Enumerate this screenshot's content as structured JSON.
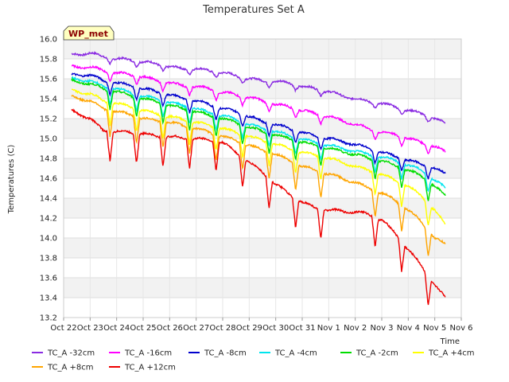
{
  "chart_data": {
    "type": "line",
    "title": "Temperatures Set A",
    "xlabel": "Time",
    "ylabel": "Temperatures (C)",
    "badge": "WP_met",
    "x_ticks": [
      "Oct 22",
      "Oct 23",
      "Oct 24",
      "Oct 25",
      "Oct 26",
      "Oct 27",
      "Oct 28",
      "Oct 29",
      "Oct 30",
      "Oct 31",
      "Nov 1",
      "Nov 2",
      "Nov 3",
      "Nov 4",
      "Nov 5",
      "Nov 6"
    ],
    "xlim": [
      0,
      15
    ],
    "ylim": [
      13.2,
      16.0
    ],
    "y_ticks": [
      13.2,
      13.4,
      13.6,
      13.8,
      14.0,
      14.2,
      14.4,
      14.6,
      14.8,
      15.0,
      15.2,
      15.4,
      15.6,
      15.8,
      16.0
    ],
    "grid": true,
    "legend_position": "bottom",
    "series": [
      {
        "name": "TC_A -32cm",
        "color": "#8a2be2",
        "x": [
          0.3,
          1.0,
          1.5,
          2.0,
          2.5,
          3.0,
          3.5,
          4.0,
          4.5,
          5.0,
          5.5,
          6.0,
          6.5,
          7.0,
          7.5,
          8.0,
          8.5,
          9.0,
          9.5,
          10.0,
          10.5,
          11.0,
          11.5,
          12.0,
          12.5,
          13.0,
          13.5,
          14.0,
          14.4
        ],
        "y": [
          15.84,
          15.86,
          15.82,
          15.8,
          15.79,
          15.77,
          15.75,
          15.72,
          15.7,
          15.7,
          15.68,
          15.66,
          15.63,
          15.6,
          15.58,
          15.57,
          15.56,
          15.52,
          15.5,
          15.47,
          15.43,
          15.4,
          15.37,
          15.35,
          15.32,
          15.28,
          15.25,
          15.2,
          15.15
        ]
      },
      {
        "name": "TC_A -16cm",
        "color": "#ff00ff",
        "x": [
          0.3,
          1.0,
          1.5,
          2.0,
          2.5,
          3.0,
          3.5,
          4.0,
          4.5,
          5.0,
          5.5,
          6.0,
          6.5,
          7.0,
          7.5,
          8.0,
          8.5,
          9.0,
          9.5,
          10.0,
          10.5,
          11.0,
          11.5,
          12.0,
          12.5,
          13.0,
          13.5,
          14.0,
          14.4
        ],
        "y": [
          15.72,
          15.72,
          15.68,
          15.66,
          15.64,
          15.62,
          15.58,
          15.56,
          15.53,
          15.52,
          15.5,
          15.46,
          15.44,
          15.41,
          15.38,
          15.34,
          15.32,
          15.28,
          15.25,
          15.22,
          15.18,
          15.14,
          15.1,
          15.06,
          15.04,
          15.0,
          14.96,
          14.92,
          14.86
        ]
      },
      {
        "name": "TC_A -8cm",
        "color": "#0000cd",
        "x": [
          0.3,
          1.0,
          1.5,
          2.0,
          2.5,
          3.0,
          3.5,
          4.0,
          4.5,
          5.0,
          5.5,
          6.0,
          6.5,
          7.0,
          7.5,
          8.0,
          8.5,
          9.0,
          9.5,
          10.0,
          10.5,
          11.0,
          11.5,
          12.0,
          12.5,
          13.0,
          13.5,
          14.0,
          14.4
        ],
        "y": [
          15.64,
          15.64,
          15.58,
          15.56,
          15.53,
          15.5,
          15.47,
          15.44,
          15.4,
          15.38,
          15.34,
          15.3,
          15.27,
          15.22,
          15.17,
          15.14,
          15.1,
          15.06,
          15.02,
          15.0,
          14.97,
          14.94,
          14.9,
          14.86,
          14.82,
          14.78,
          14.74,
          14.7,
          14.64
        ]
      },
      {
        "name": "TC_A -4cm",
        "color": "#00e5ee",
        "x": [
          0.3,
          1.0,
          1.5,
          2.0,
          2.5,
          3.0,
          3.5,
          4.0,
          4.5,
          5.0,
          5.5,
          6.0,
          6.5,
          7.0,
          7.5,
          8.0,
          8.5,
          9.0,
          9.5,
          10.0,
          10.5,
          11.0,
          11.5,
          12.0,
          12.5,
          13.0,
          13.5,
          14.0,
          14.4
        ],
        "y": [
          15.6,
          15.58,
          15.52,
          15.5,
          15.46,
          15.42,
          15.4,
          15.36,
          15.33,
          15.3,
          15.26,
          15.23,
          15.19,
          15.14,
          15.1,
          15.07,
          15.03,
          14.99,
          14.96,
          14.93,
          14.9,
          14.87,
          14.84,
          14.81,
          14.78,
          14.73,
          14.68,
          14.58,
          14.5
        ]
      },
      {
        "name": "TC_A -2cm",
        "color": "#00dd00",
        "x": [
          0.3,
          1.0,
          1.5,
          2.0,
          2.5,
          3.0,
          3.5,
          4.0,
          4.5,
          5.0,
          5.5,
          6.0,
          6.5,
          7.0,
          7.5,
          8.0,
          8.5,
          9.0,
          9.5,
          10.0,
          10.5,
          11.0,
          11.5,
          12.0,
          12.5,
          13.0,
          13.5,
          14.0,
          14.4
        ],
        "y": [
          15.58,
          15.55,
          15.5,
          15.47,
          15.43,
          15.4,
          15.37,
          15.33,
          15.3,
          15.27,
          15.23,
          15.2,
          15.16,
          15.11,
          15.07,
          15.03,
          15.0,
          14.96,
          14.93,
          14.9,
          14.87,
          14.84,
          14.8,
          14.77,
          14.73,
          14.68,
          14.62,
          14.52,
          14.42
        ]
      },
      {
        "name": "TC_A +4cm",
        "color": "#ffff00",
        "x": [
          0.3,
          1.0,
          1.5,
          2.0,
          2.5,
          3.0,
          3.5,
          4.0,
          4.5,
          5.0,
          5.5,
          6.0,
          6.5,
          7.0,
          7.5,
          8.0,
          8.5,
          9.0,
          9.5,
          10.0,
          10.5,
          11.0,
          11.5,
          12.0,
          12.5,
          13.0,
          13.5,
          14.0,
          14.4
        ],
        "y": [
          15.48,
          15.45,
          15.38,
          15.35,
          15.32,
          15.28,
          15.25,
          15.22,
          15.19,
          15.16,
          15.13,
          15.1,
          15.06,
          15.02,
          14.98,
          14.94,
          14.9,
          14.86,
          14.83,
          14.8,
          14.76,
          14.72,
          14.68,
          14.64,
          14.58,
          14.52,
          14.42,
          14.28,
          14.13
        ]
      },
      {
        "name": "TC_A +8cm",
        "color": "#ffa500",
        "x": [
          0.3,
          1.0,
          1.5,
          2.0,
          2.5,
          3.0,
          3.5,
          4.0,
          4.5,
          5.0,
          5.5,
          6.0,
          6.5,
          7.0,
          7.5,
          8.0,
          8.5,
          9.0,
          9.5,
          10.0,
          10.5,
          11.0,
          11.5,
          12.0,
          12.5,
          13.0,
          13.5,
          14.0,
          14.4
        ],
        "y": [
          15.42,
          15.38,
          15.3,
          15.27,
          15.24,
          15.2,
          15.18,
          15.16,
          15.13,
          15.1,
          15.06,
          15.02,
          14.98,
          14.93,
          14.88,
          14.84,
          14.78,
          14.72,
          14.68,
          14.64,
          14.6,
          14.56,
          14.5,
          14.45,
          14.38,
          14.28,
          14.16,
          14.0,
          13.93
        ]
      },
      {
        "name": "TC_A +12cm",
        "color": "#ee0000",
        "x": [
          0.3,
          1.0,
          1.5,
          2.0,
          2.5,
          3.0,
          3.5,
          4.0,
          4.5,
          5.0,
          5.5,
          6.0,
          6.5,
          7.0,
          7.5,
          8.0,
          8.5,
          9.0,
          9.5,
          10.0,
          10.5,
          11.0,
          11.5,
          12.0,
          12.5,
          13.0,
          13.5,
          14.0,
          14.4
        ],
        "y": [
          15.28,
          15.2,
          15.08,
          15.07,
          15.06,
          15.05,
          15.02,
          15.02,
          15.0,
          15.0,
          14.98,
          14.96,
          14.86,
          14.76,
          14.66,
          14.54,
          14.44,
          14.36,
          14.3,
          14.28,
          14.27,
          14.26,
          14.24,
          14.18,
          14.05,
          13.88,
          13.72,
          13.52,
          13.4
        ]
      }
    ],
    "dips": [
      1.75,
      2.75,
      3.75,
      4.75,
      5.75,
      6.75,
      7.75,
      8.75,
      9.7,
      11.75,
      12.75,
      13.75
    ]
  }
}
